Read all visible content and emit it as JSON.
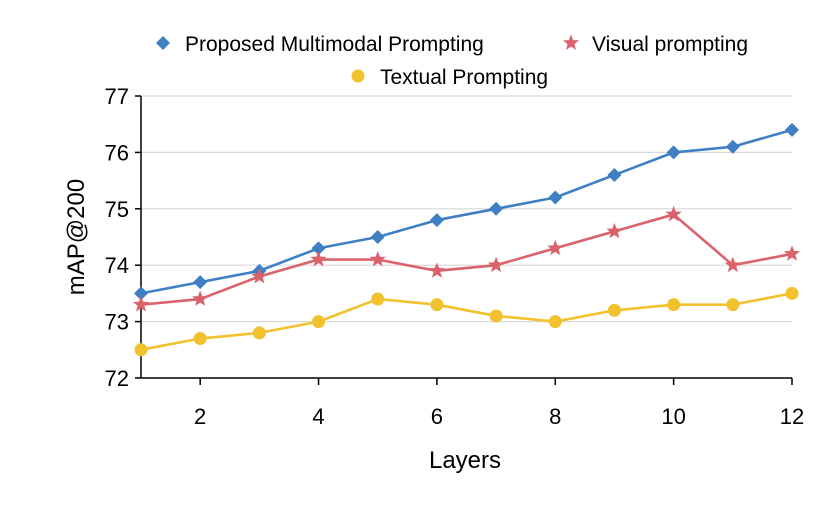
{
  "chart_data": {
    "type": "line",
    "xlabel": "Layers",
    "ylabel": "mAP@200",
    "xlim": [
      1,
      12
    ],
    "ylim": [
      72,
      77
    ],
    "x_ticks": [
      2,
      4,
      6,
      8,
      10,
      12
    ],
    "y_ticks": [
      72,
      73,
      74,
      75,
      76,
      77
    ],
    "grid": "horizontal",
    "legend": "top",
    "x": [
      1,
      2,
      3,
      4,
      5,
      6,
      7,
      8,
      9,
      10,
      11,
      12
    ],
    "series": [
      {
        "name": "Proposed Multimodal Prompting",
        "marker": "diamond",
        "color": "#3f7fc4",
        "values": [
          73.5,
          73.7,
          73.9,
          74.3,
          74.5,
          74.8,
          75.0,
          75.2,
          75.6,
          76.0,
          76.1,
          76.4
        ]
      },
      {
        "name": "Visual prompting",
        "marker": "star",
        "color": "#d9626b",
        "values": [
          73.3,
          73.4,
          73.8,
          74.1,
          74.1,
          73.9,
          74.0,
          74.3,
          74.6,
          74.9,
          74.0,
          74.2
        ]
      },
      {
        "name": "Textual Prompting",
        "marker": "circle",
        "color": "#f2c12e",
        "values": [
          72.5,
          72.7,
          72.8,
          73.0,
          73.4,
          73.3,
          73.1,
          73.0,
          73.2,
          73.3,
          73.3,
          73.5
        ]
      }
    ]
  }
}
